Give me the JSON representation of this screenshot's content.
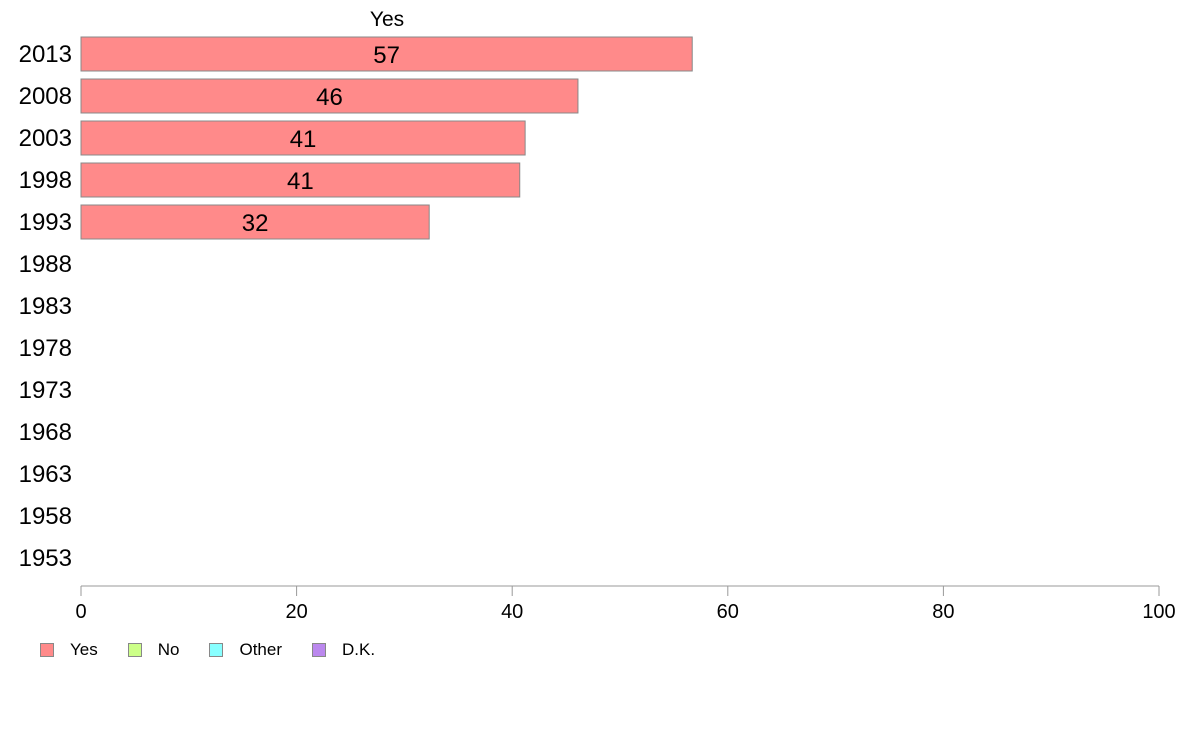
{
  "chart_data": {
    "type": "bar",
    "orientation": "horizontal",
    "title": "Yes",
    "categories": [
      "2013",
      "2008",
      "2003",
      "1998",
      "1993",
      "1988",
      "1983",
      "1978",
      "1973",
      "1968",
      "1963",
      "1958",
      "1953"
    ],
    "series": [
      {
        "name": "Yes",
        "color": "#ff8a8a",
        "values": [
          56.7,
          46.1,
          41.2,
          40.7,
          32.3,
          null,
          null,
          null,
          null,
          null,
          null,
          null,
          null
        ]
      }
    ],
    "data_labels": [
      "57",
      "46",
      "41",
      "41",
      "32",
      "",
      "",
      "",
      "",
      "",
      "",
      "",
      ""
    ],
    "xlim": [
      0,
      100
    ],
    "xticks": [
      "0",
      "20",
      "40",
      "60",
      "80",
      "100"
    ],
    "grid": false,
    "legend_position": "bottom-left",
    "legend": [
      {
        "label": "Yes",
        "color": "#ff8a8a"
      },
      {
        "label": "No",
        "color": "#ccff88"
      },
      {
        "label": "Other",
        "color": "#88ffff"
      },
      {
        "label": "D.K.",
        "color": "#bb88ee"
      }
    ]
  }
}
